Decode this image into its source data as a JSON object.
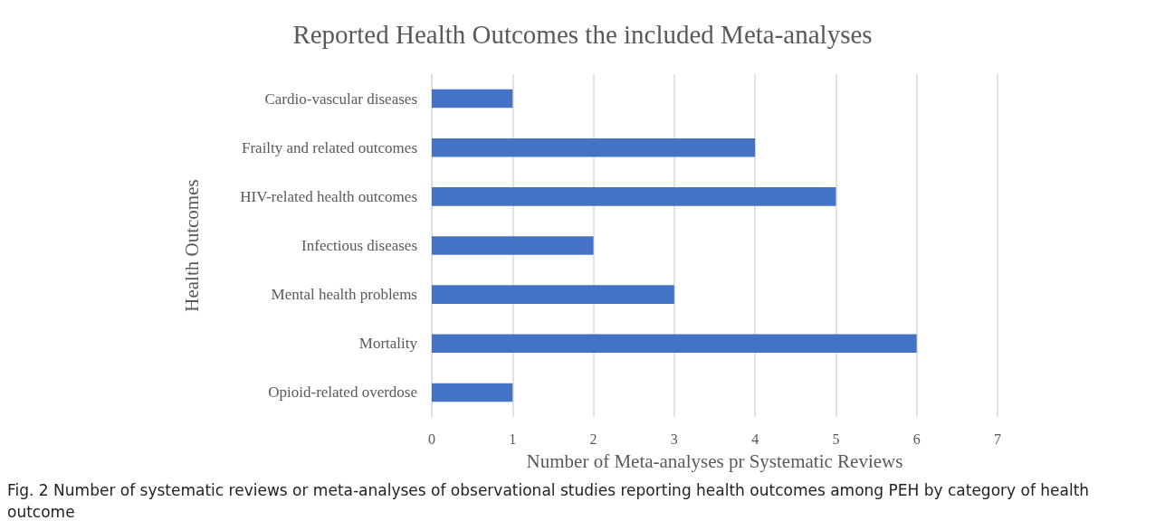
{
  "chart_data": {
    "type": "bar",
    "orientation": "horizontal",
    "title": "Reported Health Outcomes the included Meta-analyses",
    "xlabel": "Number of Meta-analyses pr Systematic Reviews",
    "ylabel": "Health Outcomes",
    "categories": [
      "Cardio-vascular diseases",
      "Frailty and related outcomes",
      "HIV-related health outcomes",
      "Infectious diseases",
      "Mental health problems",
      "Mortality",
      "Opioid-related overdose"
    ],
    "values": [
      1,
      4,
      5,
      2,
      3,
      6,
      1
    ],
    "color": "#4472c4",
    "xlim": [
      0,
      7
    ],
    "xticks": [
      0,
      1,
      2,
      3,
      4,
      5,
      6,
      7
    ],
    "grid": "x",
    "annotations": [
      "Fig. 2 Number of systematic reviews or meta-analyses of observational studies reporting health outcomes among PEH by category of health outcome"
    ]
  }
}
